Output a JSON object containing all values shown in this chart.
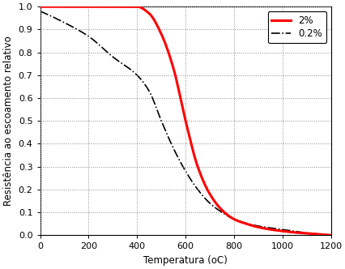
{
  "title": "",
  "xlabel": "Temperatura (oC)",
  "ylabel": "Resistência ao escoamento relativo",
  "xlim": [
    0,
    1200
  ],
  "ylim": [
    0,
    1.0
  ],
  "xticks": [
    0,
    200,
    400,
    600,
    800,
    1000,
    1200
  ],
  "yticks": [
    0,
    0.1,
    0.2,
    0.3,
    0.4,
    0.5,
    0.6,
    0.7,
    0.8,
    0.9,
    1.0
  ],
  "legend_labels": [
    "2%",
    "0.2%"
  ],
  "red_color": "#ff0000",
  "black_color": "#000000",
  "background_color": "#ffffff",
  "grid_color": "#888888",
  "figsize": [
    4.27,
    3.32
  ],
  "dpi": 100,
  "red_points_T": [
    0,
    400,
    450,
    500,
    550,
    600,
    650,
    700,
    750,
    800,
    850,
    900,
    950,
    1000,
    1050,
    1100,
    1150,
    1200
  ],
  "red_points_Y": [
    1.0,
    1.0,
    0.97,
    0.88,
    0.73,
    0.5,
    0.3,
    0.18,
    0.11,
    0.07,
    0.05,
    0.035,
    0.025,
    0.018,
    0.012,
    0.008,
    0.004,
    0.0
  ],
  "black_points_T": [
    0,
    100,
    200,
    300,
    400,
    450,
    500,
    550,
    600,
    650,
    700,
    750,
    800,
    900,
    1000,
    1100,
    1200
  ],
  "black_points_Y": [
    0.98,
    0.93,
    0.87,
    0.78,
    0.7,
    0.63,
    0.5,
    0.38,
    0.28,
    0.2,
    0.14,
    0.1,
    0.07,
    0.04,
    0.025,
    0.01,
    0.0
  ]
}
